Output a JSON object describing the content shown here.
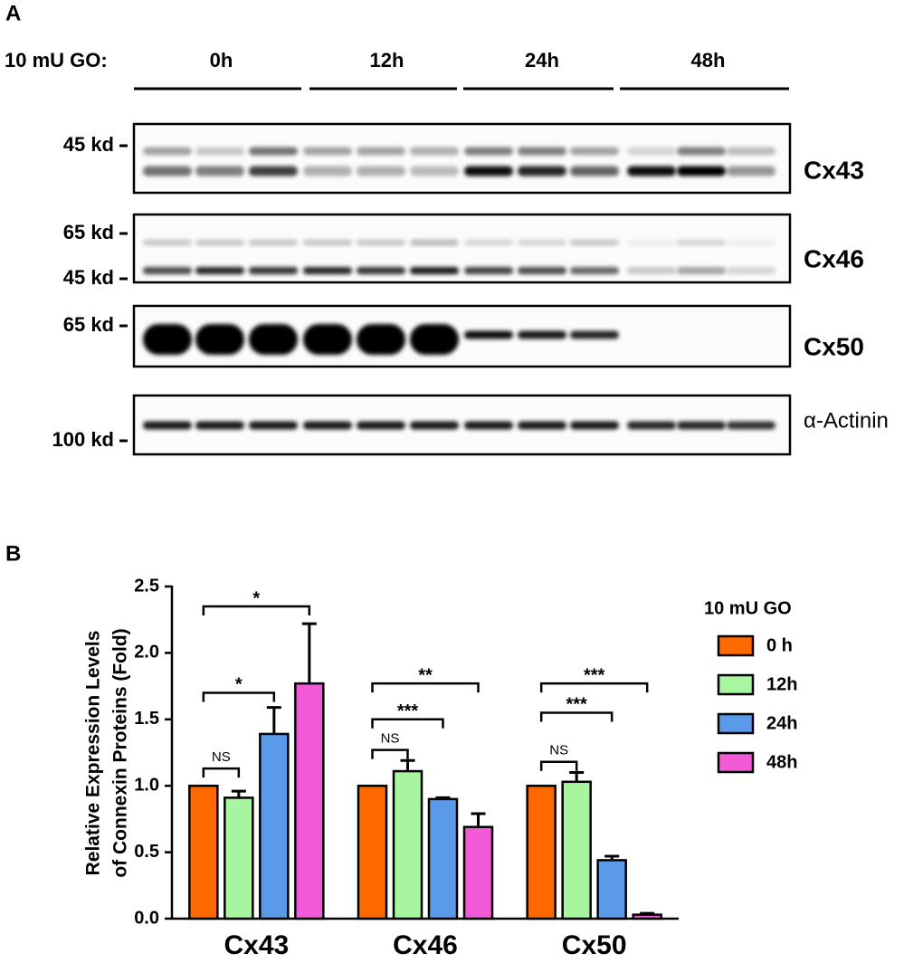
{
  "panel_labels": [
    "A",
    "B"
  ],
  "blot": {
    "treatment": "10 mU GO:",
    "timepoints": [
      "0h",
      "12h",
      "24h",
      "48h"
    ],
    "blots": [
      {
        "name": "Cx43",
        "markers": [
          "45 kd"
        ]
      },
      {
        "name": "Cx46",
        "markers": [
          "65 kd",
          "45 kd"
        ]
      },
      {
        "name": "Cx50",
        "markers": [
          "65 kd"
        ]
      },
      {
        "name": "α-Actinin",
        "markers": [
          "100 kd"
        ]
      }
    ]
  },
  "chart_data": {
    "type": "bar",
    "ylabel": [
      "Relative Expression Levels",
      "of Connexin Proteins (Fold)"
    ],
    "categories": [
      "Cx43",
      "Cx46",
      "Cx50"
    ],
    "series": [
      {
        "name": "0 h",
        "color": "#ff6a00",
        "values": [
          1.0,
          1.0,
          1.0
        ],
        "errors": [
          0,
          0,
          0
        ]
      },
      {
        "name": "12h",
        "color": "#a8f5a0",
        "values": [
          0.91,
          1.11,
          1.03
        ],
        "errors": [
          0.05,
          0.08,
          0.07
        ]
      },
      {
        "name": "24h",
        "color": "#5b9ae8",
        "values": [
          1.39,
          0.9,
          0.44
        ],
        "errors": [
          0.2,
          0.01,
          0.03
        ]
      },
      {
        "name": "48h",
        "color": "#f25ad8",
        "values": [
          1.77,
          0.69,
          0.03
        ],
        "errors": [
          0.45,
          0.1,
          0.01
        ]
      }
    ],
    "ylim": [
      0,
      2.5
    ],
    "yticks": [
      {
        "value": 0,
        "label": "0.0"
      },
      0.5,
      {
        "value": 1,
        "label": "1.0"
      },
      1.5,
      {
        "value": 2,
        "label": "2.0"
      },
      2.5
    ],
    "legend_title": "10 mU GO",
    "legend": "right",
    "annotations": [
      {
        "text": "NS",
        "category": 0,
        "series": [
          0,
          1
        ],
        "y": 1.13
      },
      {
        "text": "*",
        "category": 0,
        "series": [
          0,
          2
        ],
        "y": 1.7
      },
      {
        "text": "*",
        "category": 0,
        "series": [
          0,
          3
        ],
        "y": 2.35
      },
      {
        "text": "NS",
        "category": 1,
        "series": [
          0,
          1
        ],
        "y": 1.27
      },
      {
        "text": "***",
        "category": 1,
        "series": [
          0,
          2
        ],
        "y": 1.5
      },
      {
        "text": "**",
        "category": 1,
        "series": [
          0,
          3
        ],
        "y": 1.77
      },
      {
        "text": "NS",
        "category": 2,
        "series": [
          0,
          1
        ],
        "y": 1.18
      },
      {
        "text": "***",
        "category": 2,
        "series": [
          0,
          2
        ],
        "y": 1.55
      },
      {
        "text": "***",
        "category": 2,
        "series": [
          0,
          3
        ],
        "y": 1.77
      }
    ]
  }
}
